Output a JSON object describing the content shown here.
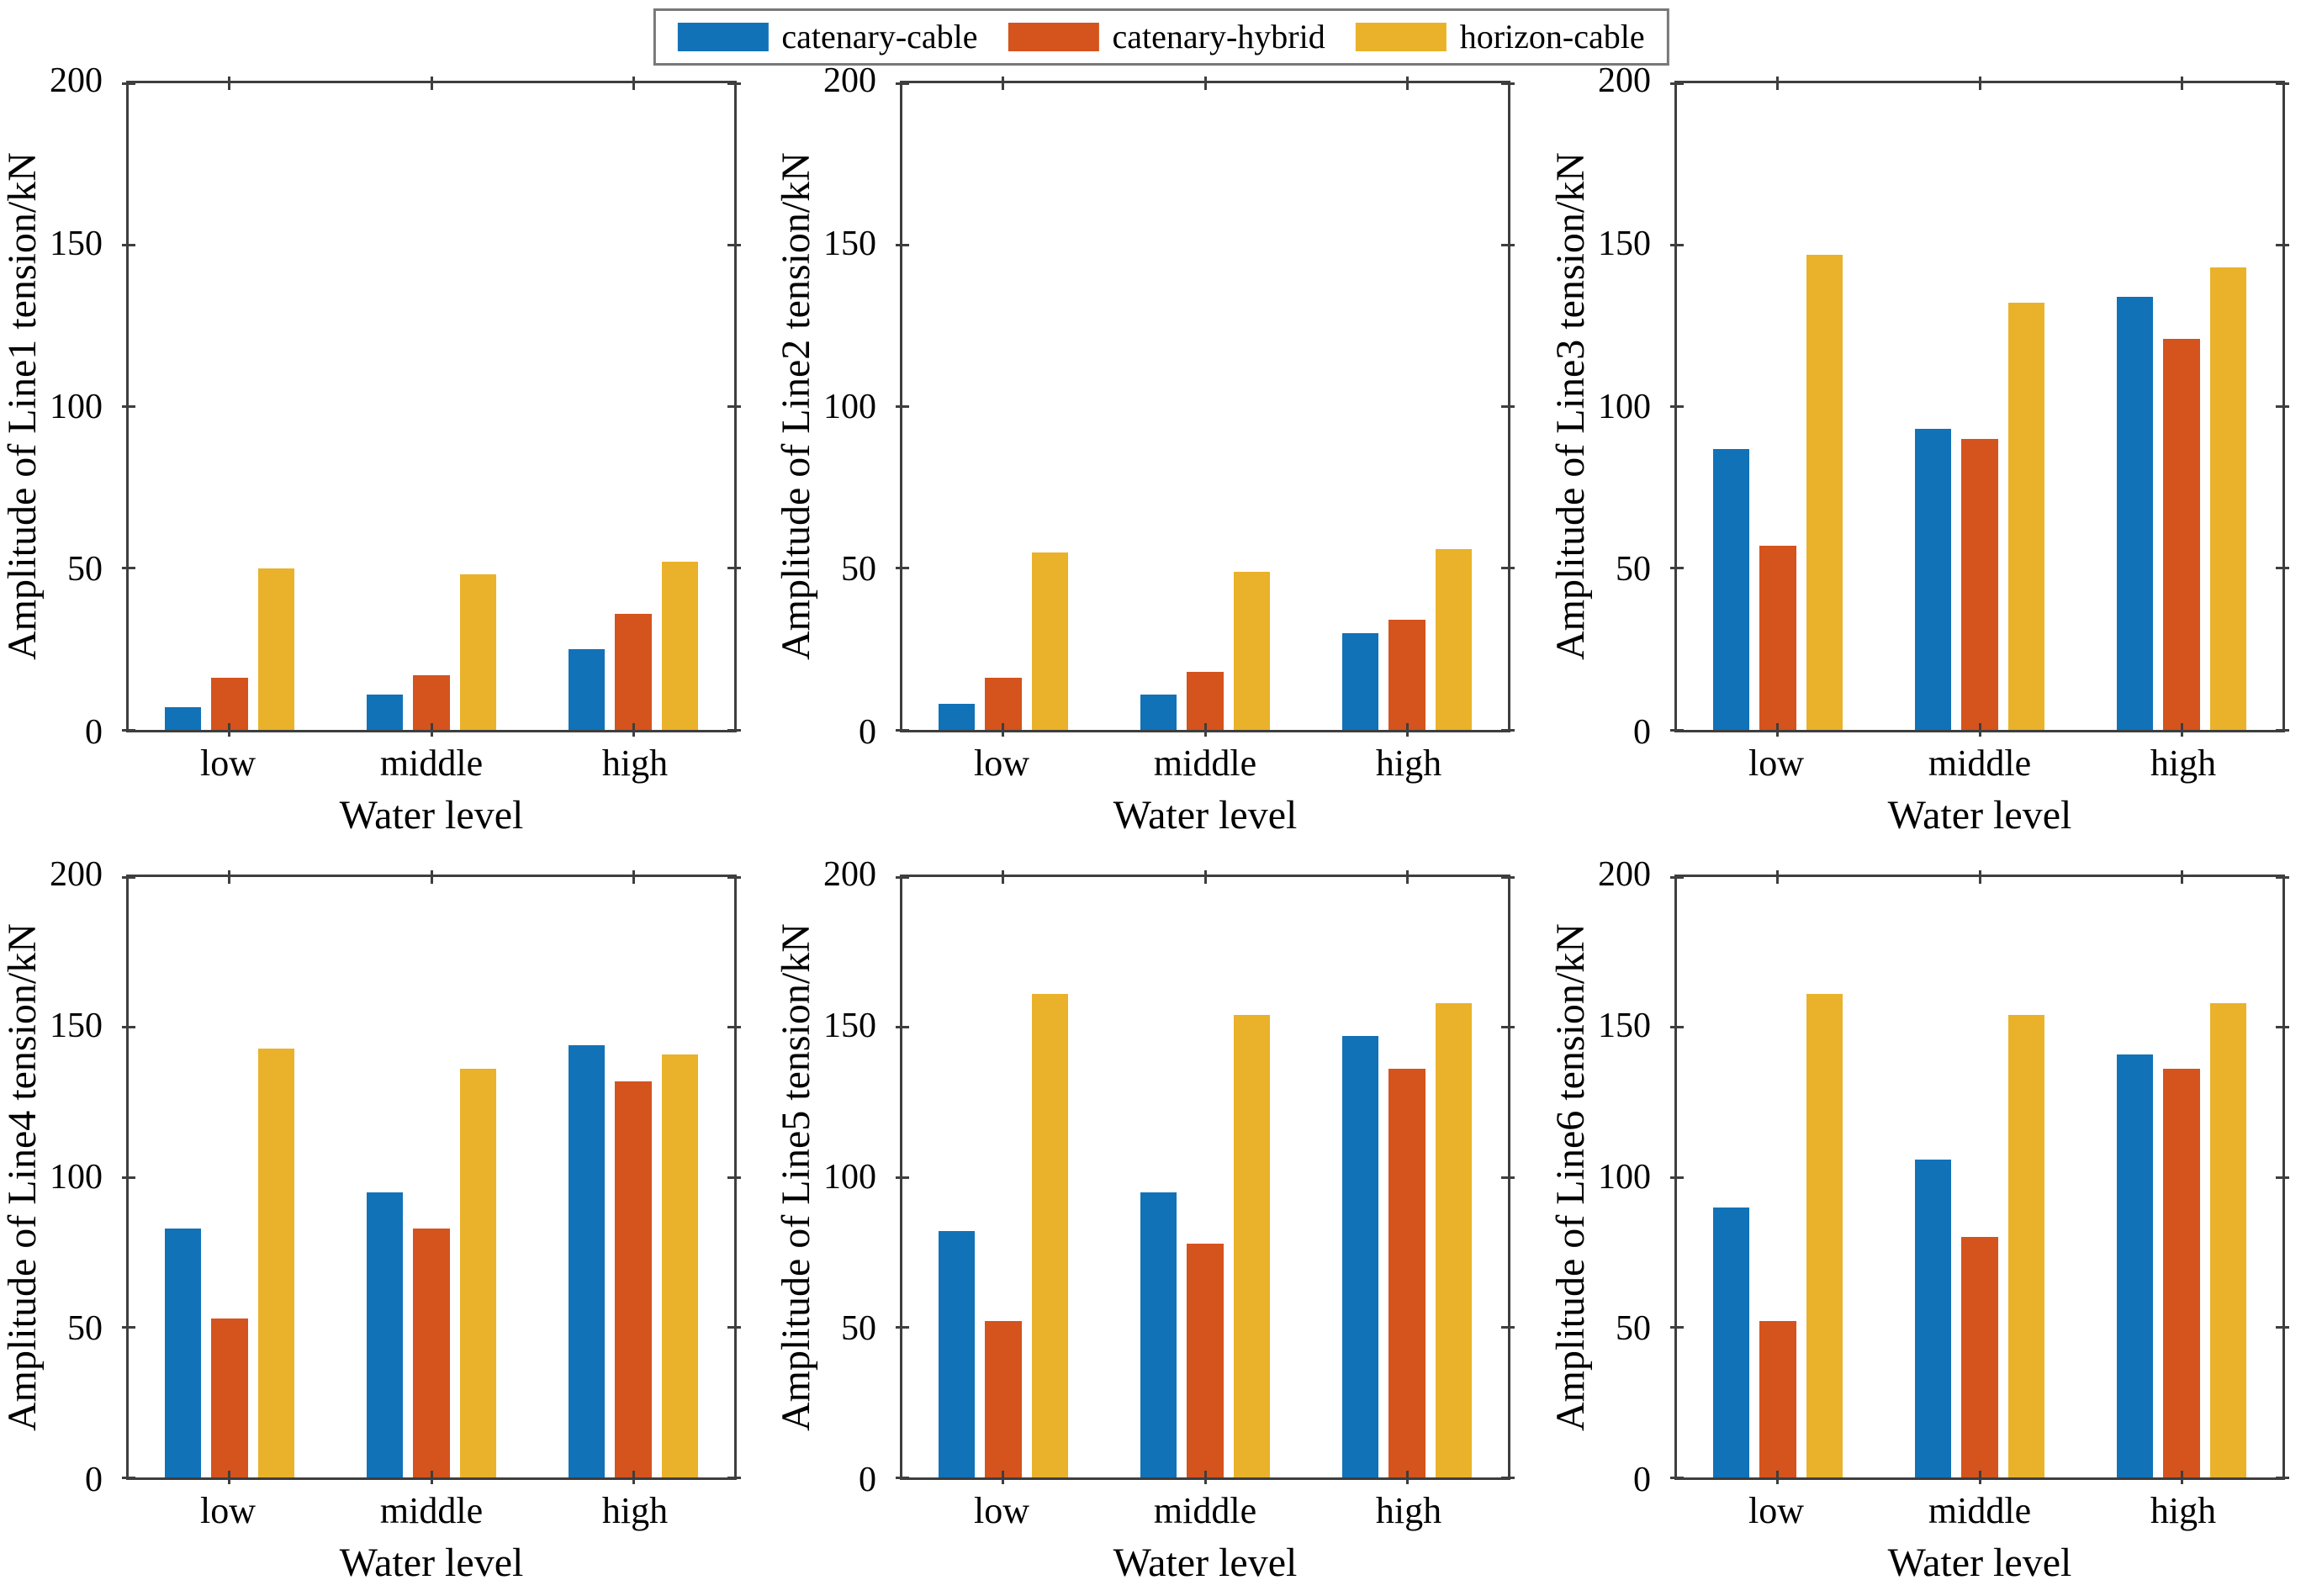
{
  "figure": {
    "background": "#ffffff",
    "axis_color": "#3e3e3e",
    "text_color": "#000000"
  },
  "legend": {
    "position": "top-center",
    "items": [
      {
        "label": "catenary-cable",
        "color": "#1172b8",
        "swatch": "blue-swatch"
      },
      {
        "label": "catenary-hybrid",
        "color": "#d5531d",
        "swatch": "orange-swatch"
      },
      {
        "label": "horizon-cable",
        "color": "#eab22a",
        "swatch": "yellow-swatch"
      }
    ]
  },
  "chart_data": [
    {
      "type": "bar",
      "title": "",
      "categories": [
        "low",
        "middle",
        "high"
      ],
      "series": [
        {
          "name": "catenary-cable",
          "color": "#1172b8",
          "values": [
            7,
            11,
            25
          ]
        },
        {
          "name": "catenary-hybrid",
          "color": "#d5531d",
          "values": [
            16,
            17,
            36
          ]
        },
        {
          "name": "horizon-cable",
          "color": "#eab22a",
          "values": [
            50,
            48,
            52
          ]
        }
      ],
      "xlabel": "Water level",
      "ylabel": "Amplitude of Line1 tension/kN",
      "ylim": [
        0,
        200
      ],
      "yticks": [
        0,
        50,
        100,
        150,
        200
      ],
      "grid": false,
      "legend_position": "shared-top"
    },
    {
      "type": "bar",
      "title": "",
      "categories": [
        "low",
        "middle",
        "high"
      ],
      "series": [
        {
          "name": "catenary-cable",
          "color": "#1172b8",
          "values": [
            8,
            11,
            30
          ]
        },
        {
          "name": "catenary-hybrid",
          "color": "#d5531d",
          "values": [
            16,
            18,
            34
          ]
        },
        {
          "name": "horizon-cable",
          "color": "#eab22a",
          "values": [
            55,
            49,
            56
          ]
        }
      ],
      "xlabel": "Water level",
      "ylabel": "Amplitude of Line2 tension/kN",
      "ylim": [
        0,
        200
      ],
      "yticks": [
        0,
        50,
        100,
        150,
        200
      ],
      "grid": false,
      "legend_position": "shared-top"
    },
    {
      "type": "bar",
      "title": "",
      "categories": [
        "low",
        "middle",
        "high"
      ],
      "series": [
        {
          "name": "catenary-cable",
          "color": "#1172b8",
          "values": [
            87,
            93,
            134
          ]
        },
        {
          "name": "catenary-hybrid",
          "color": "#d5531d",
          "values": [
            57,
            90,
            121
          ]
        },
        {
          "name": "horizon-cable",
          "color": "#eab22a",
          "values": [
            147,
            132,
            143
          ]
        }
      ],
      "xlabel": "Water level",
      "ylabel": "Amplitude of Line3 tension/kN",
      "ylim": [
        0,
        200
      ],
      "yticks": [
        0,
        50,
        100,
        150,
        200
      ],
      "grid": false,
      "legend_position": "shared-top"
    },
    {
      "type": "bar",
      "title": "",
      "categories": [
        "low",
        "middle",
        "high"
      ],
      "series": [
        {
          "name": "catenary-cable",
          "color": "#1172b8",
          "values": [
            83,
            95,
            144
          ]
        },
        {
          "name": "catenary-hybrid",
          "color": "#d5531d",
          "values": [
            53,
            83,
            132
          ]
        },
        {
          "name": "horizon-cable",
          "color": "#eab22a",
          "values": [
            143,
            136,
            141
          ]
        }
      ],
      "xlabel": "Water level",
      "ylabel": "Amplitude of Line4 tension/kN",
      "ylim": [
        0,
        200
      ],
      "yticks": [
        0,
        50,
        100,
        150,
        200
      ],
      "grid": false,
      "legend_position": "shared-top"
    },
    {
      "type": "bar",
      "title": "",
      "categories": [
        "low",
        "middle",
        "high"
      ],
      "series": [
        {
          "name": "catenary-cable",
          "color": "#1172b8",
          "values": [
            82,
            95,
            147
          ]
        },
        {
          "name": "catenary-hybrid",
          "color": "#d5531d",
          "values": [
            52,
            78,
            136
          ]
        },
        {
          "name": "horizon-cable",
          "color": "#eab22a",
          "values": [
            161,
            154,
            158
          ]
        }
      ],
      "xlabel": "Water level",
      "ylabel": "Amplitude of Line5 tension/kN",
      "ylim": [
        0,
        200
      ],
      "yticks": [
        0,
        50,
        100,
        150,
        200
      ],
      "grid": false,
      "legend_position": "shared-top"
    },
    {
      "type": "bar",
      "title": "",
      "categories": [
        "low",
        "middle",
        "high"
      ],
      "series": [
        {
          "name": "catenary-cable",
          "color": "#1172b8",
          "values": [
            90,
            106,
            141
          ]
        },
        {
          "name": "catenary-hybrid",
          "color": "#d5531d",
          "values": [
            52,
            80,
            136
          ]
        },
        {
          "name": "horizon-cable",
          "color": "#eab22a",
          "values": [
            161,
            154,
            158
          ]
        }
      ],
      "xlabel": "Water level",
      "ylabel": "Amplitude of Line6 tension/kN",
      "ylim": [
        0,
        200
      ],
      "yticks": [
        0,
        50,
        100,
        150,
        200
      ],
      "grid": false,
      "legend_position": "shared-top"
    }
  ]
}
